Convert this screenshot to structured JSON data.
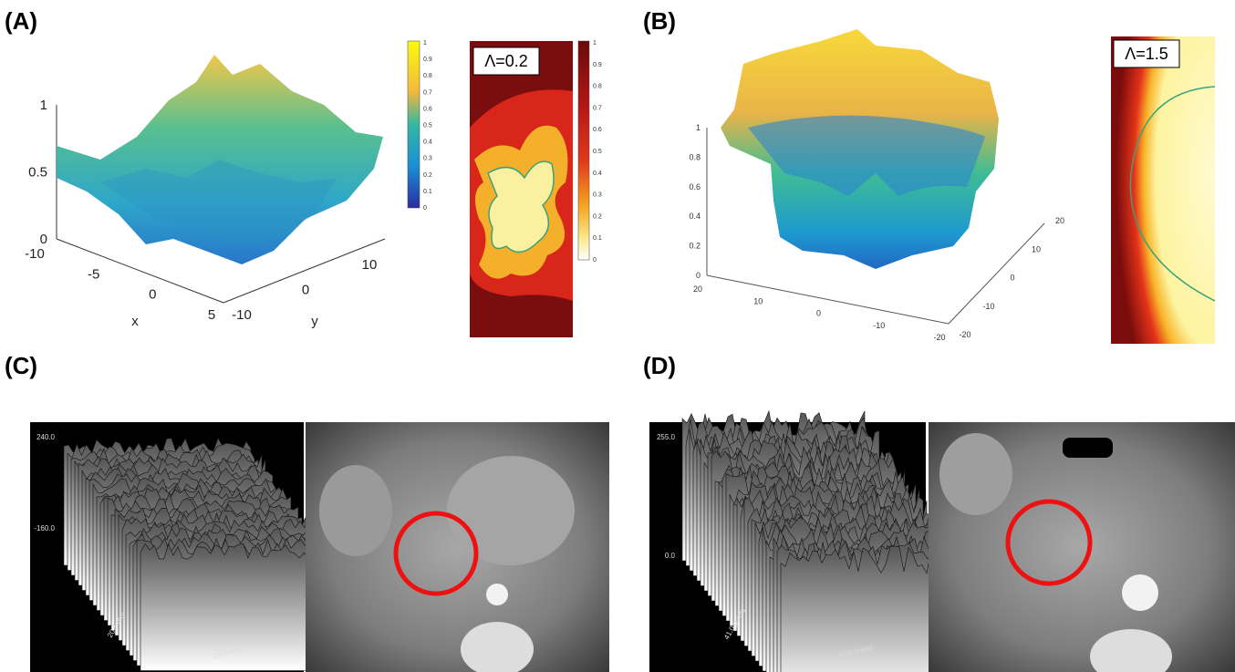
{
  "panels": [
    {
      "label": "(A)",
      "surface": {
        "z_ticks": [
          "1",
          "0.5",
          "0"
        ],
        "x_ticks": [
          "-10",
          "-5",
          "0",
          "5"
        ],
        "y_ticks": [
          "-10",
          "0",
          "10"
        ],
        "x_label": "x",
        "y_label": "y"
      },
      "colorbar_ticks": [
        "1",
        "0.9",
        "0.8",
        "0.7",
        "0.6",
        "0.5",
        "0.4",
        "0.3",
        "0.2",
        "0.1",
        "0"
      ],
      "map": {
        "annotation": "Λ=0.2",
        "colorbar_ticks": [
          "1",
          "0.9",
          "0.8",
          "0.7",
          "0.6",
          "0.5",
          "0.4",
          "0.3",
          "0.2",
          "0.1",
          "0"
        ]
      }
    },
    {
      "label": "(B)",
      "surface": {
        "z_ticks": [
          "1",
          "0.8",
          "0.6",
          "0.4",
          "0.2",
          "0"
        ],
        "x_ticks": [
          "20",
          "10",
          "0",
          "-10",
          "-20"
        ],
        "y_ticks": [
          "20",
          "10",
          "0",
          "-10",
          "-20"
        ]
      },
      "map": {
        "annotation": "Λ=1.5"
      }
    },
    {
      "label": "(C)",
      "plot": {
        "z_max": "240.0",
        "z_min": "-160.0",
        "depth_label": "20.5 mm",
        "width_label": "22.5 mm"
      }
    },
    {
      "label": "(D)",
      "plot": {
        "z_max": "255.0",
        "z_min": "0.0",
        "depth_label": "41.0 pixels",
        "width_label": "47.0 pixels"
      }
    }
  ]
}
